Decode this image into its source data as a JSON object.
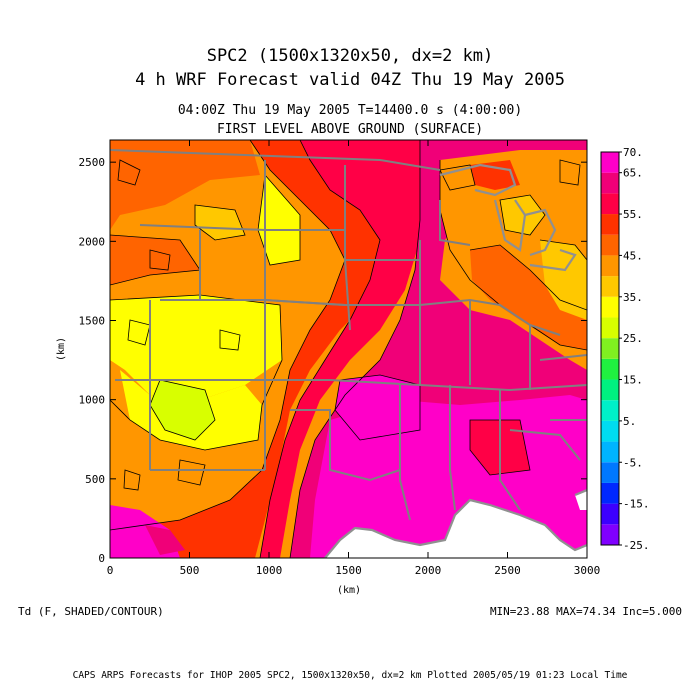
{
  "titles": {
    "line1": "SPC2 (1500x1320x50, dx=2 km)",
    "line2": "4 h WRF Forecast valid 04Z Thu 19 May 2005",
    "time_line": "04:00Z Thu 19 May 2005     T=14400.0 s (4:00:00)",
    "level_line": "FIRST LEVEL ABOVE GROUND (SURFACE)"
  },
  "footer": {
    "variable": "Td (F, SHADED/CONTOUR)",
    "stats": "MIN=23.88 MAX=74.34 Inc=5.000",
    "credits": "CAPS ARPS Forecasts for IHOP 2005   SPC2, 1500x1320x50, dx=2 km   Plotted 2005/05/19 01:23 Local Time"
  },
  "chart_data": {
    "type": "heatmap",
    "xlabel": "(km)",
    "ylabel": "(km)",
    "xlim": [
      0,
      3000
    ],
    "ylim": [
      0,
      2640
    ],
    "x_ticks": [
      "0",
      "500",
      "1000",
      "1500",
      "2000",
      "2500",
      "3000"
    ],
    "y_ticks": [
      "0",
      "500",
      "1000",
      "1500",
      "2000",
      "2500"
    ],
    "x_tick_values": [
      0,
      500,
      1000,
      1500,
      2000,
      2500,
      3000
    ],
    "y_tick_values": [
      0,
      500,
      1000,
      1500,
      2000,
      2500
    ],
    "colorbar": {
      "labels": [
        "70.",
        "65.",
        "55.",
        "45.",
        "35.",
        "25.",
        "15.",
        "5.",
        "-5.",
        "-15.",
        "-25."
      ],
      "levels": [
        -25,
        -20,
        -15,
        -10,
        -5,
        0,
        5,
        10,
        15,
        20,
        25,
        30,
        35,
        40,
        45,
        50,
        55,
        60,
        65,
        70
      ],
      "colors": [
        "#8000ff",
        "#3c00ff",
        "#0028ff",
        "#0078ff",
        "#00b4ff",
        "#00dcf0",
        "#00f0c8",
        "#00f080",
        "#20f040",
        "#80f020",
        "#d8ff00",
        "#ffff00",
        "#ffc800",
        "#ff9600",
        "#ff6400",
        "#ff3200",
        "#ff0046",
        "#f00078",
        "#ff00c8"
      ]
    }
  },
  "colors": {
    "state_lines": "#808080",
    "coast_lines": "#909090",
    "no_data": "#ffffff"
  }
}
